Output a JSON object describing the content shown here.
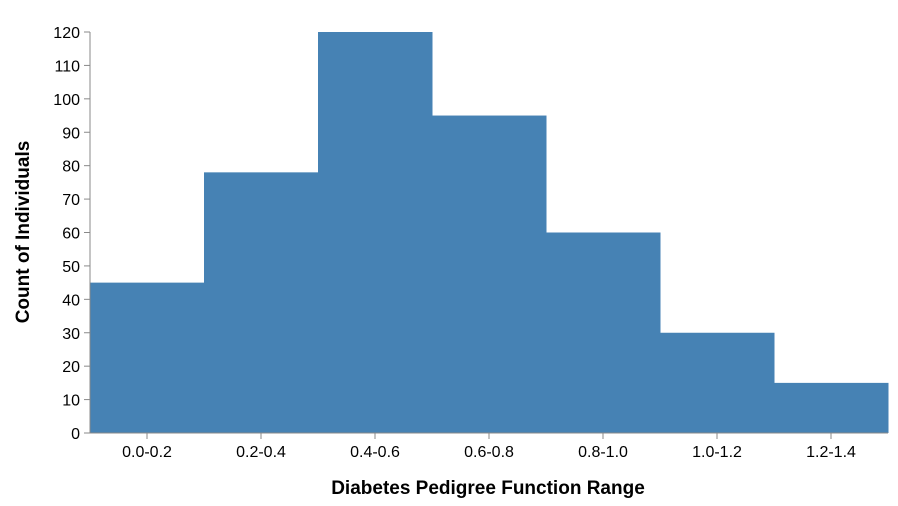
{
  "chart_data": {
    "type": "bar",
    "categories": [
      "0.0-0.2",
      "0.2-0.4",
      "0.4-0.6",
      "0.6-0.8",
      "0.8-1.0",
      "1.0-1.2",
      "1.2-1.4"
    ],
    "values": [
      45,
      78,
      120,
      95,
      60,
      30,
      15
    ],
    "xlabel": "Diabetes Pedigree Function Range",
    "ylabel": "Count of Individuals",
    "ylim": [
      0,
      120
    ],
    "yticks": [
      0,
      10,
      20,
      30,
      40,
      50,
      60,
      70,
      80,
      90,
      100,
      110,
      120
    ],
    "bar_color": "#4682b4",
    "grid": false
  }
}
